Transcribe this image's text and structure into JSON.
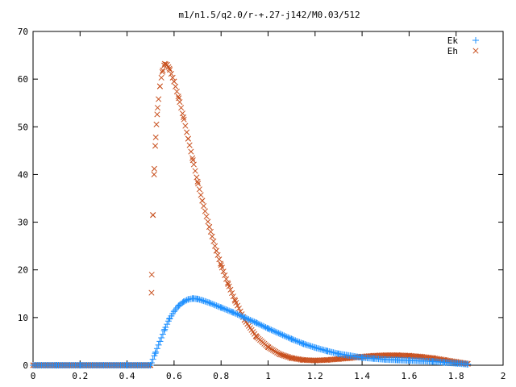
{
  "chart_data": {
    "type": "scatter",
    "title": "m1/n1.5/q2.0/r-+.27-j142/M0.03/512",
    "xlabel": "",
    "ylabel": "",
    "xlim": [
      0,
      2
    ],
    "ylim": [
      0,
      70
    ],
    "xticks": [
      "0",
      "0.2",
      "0.4",
      "0.6",
      "0.8",
      "1",
      "1.2",
      "1.4",
      "1.6",
      "1.8",
      "2"
    ],
    "yticks": [
      "0",
      "10",
      "20",
      "30",
      "40",
      "50",
      "60",
      "70"
    ],
    "legend_position": "top-right",
    "grid": false,
    "series": [
      {
        "name": "Ek",
        "marker": "+",
        "color": "#1e90ff",
        "x": [
          0,
          0.1,
          0.2,
          0.3,
          0.4,
          0.5,
          0.52,
          0.54,
          0.56,
          0.58,
          0.6,
          0.62,
          0.64,
          0.66,
          0.68,
          0.7,
          0.72,
          0.75,
          0.8,
          0.85,
          0.9,
          0.95,
          1.0,
          1.05,
          1.1,
          1.15,
          1.2,
          1.25,
          1.3,
          1.35,
          1.4,
          1.45,
          1.5,
          1.55,
          1.6,
          1.65,
          1.7,
          1.75,
          1.8,
          1.85
        ],
        "y": [
          0,
          0,
          0,
          0,
          0,
          0,
          2.5,
          5.0,
          7.5,
          9.7,
          11.3,
          12.5,
          13.3,
          13.8,
          14.0,
          13.9,
          13.6,
          13.1,
          12.1,
          11.1,
          10.0,
          8.9,
          7.7,
          6.6,
          5.5,
          4.5,
          3.7,
          3.0,
          2.4,
          2.0,
          1.6,
          1.4,
          1.2,
          1.1,
          1.0,
          0.9,
          0.8,
          0.6,
          0.4,
          0.2
        ]
      },
      {
        "name": "Eh",
        "marker": "x",
        "color": "#c8501e",
        "x": [
          0,
          0.1,
          0.2,
          0.3,
          0.4,
          0.5,
          0.505,
          0.51,
          0.515,
          0.52,
          0.525,
          0.53,
          0.54,
          0.55,
          0.56,
          0.57,
          0.58,
          0.6,
          0.62,
          0.64,
          0.66,
          0.68,
          0.7,
          0.72,
          0.75,
          0.78,
          0.8,
          0.83,
          0.86,
          0.9,
          0.95,
          1.0,
          1.05,
          1.1,
          1.15,
          1.2,
          1.25,
          1.3,
          1.35,
          1.4,
          1.45,
          1.5,
          1.55,
          1.6,
          1.65,
          1.7,
          1.75,
          1.8,
          1.85
        ],
        "y": [
          0,
          0,
          0,
          0,
          0,
          0,
          19,
          31.5,
          40,
          46,
          50.5,
          54,
          58.5,
          61.5,
          63.2,
          63.0,
          62.2,
          59.5,
          56.0,
          52.0,
          47.5,
          43.0,
          38.5,
          34.5,
          29.0,
          24.0,
          21.0,
          17.0,
          13.5,
          9.5,
          6.0,
          3.8,
          2.3,
          1.5,
          1.1,
          1.0,
          1.1,
          1.3,
          1.5,
          1.8,
          2.0,
          2.1,
          2.1,
          2.0,
          1.8,
          1.5,
          1.1,
          0.7,
          0.3
        ]
      }
    ]
  }
}
